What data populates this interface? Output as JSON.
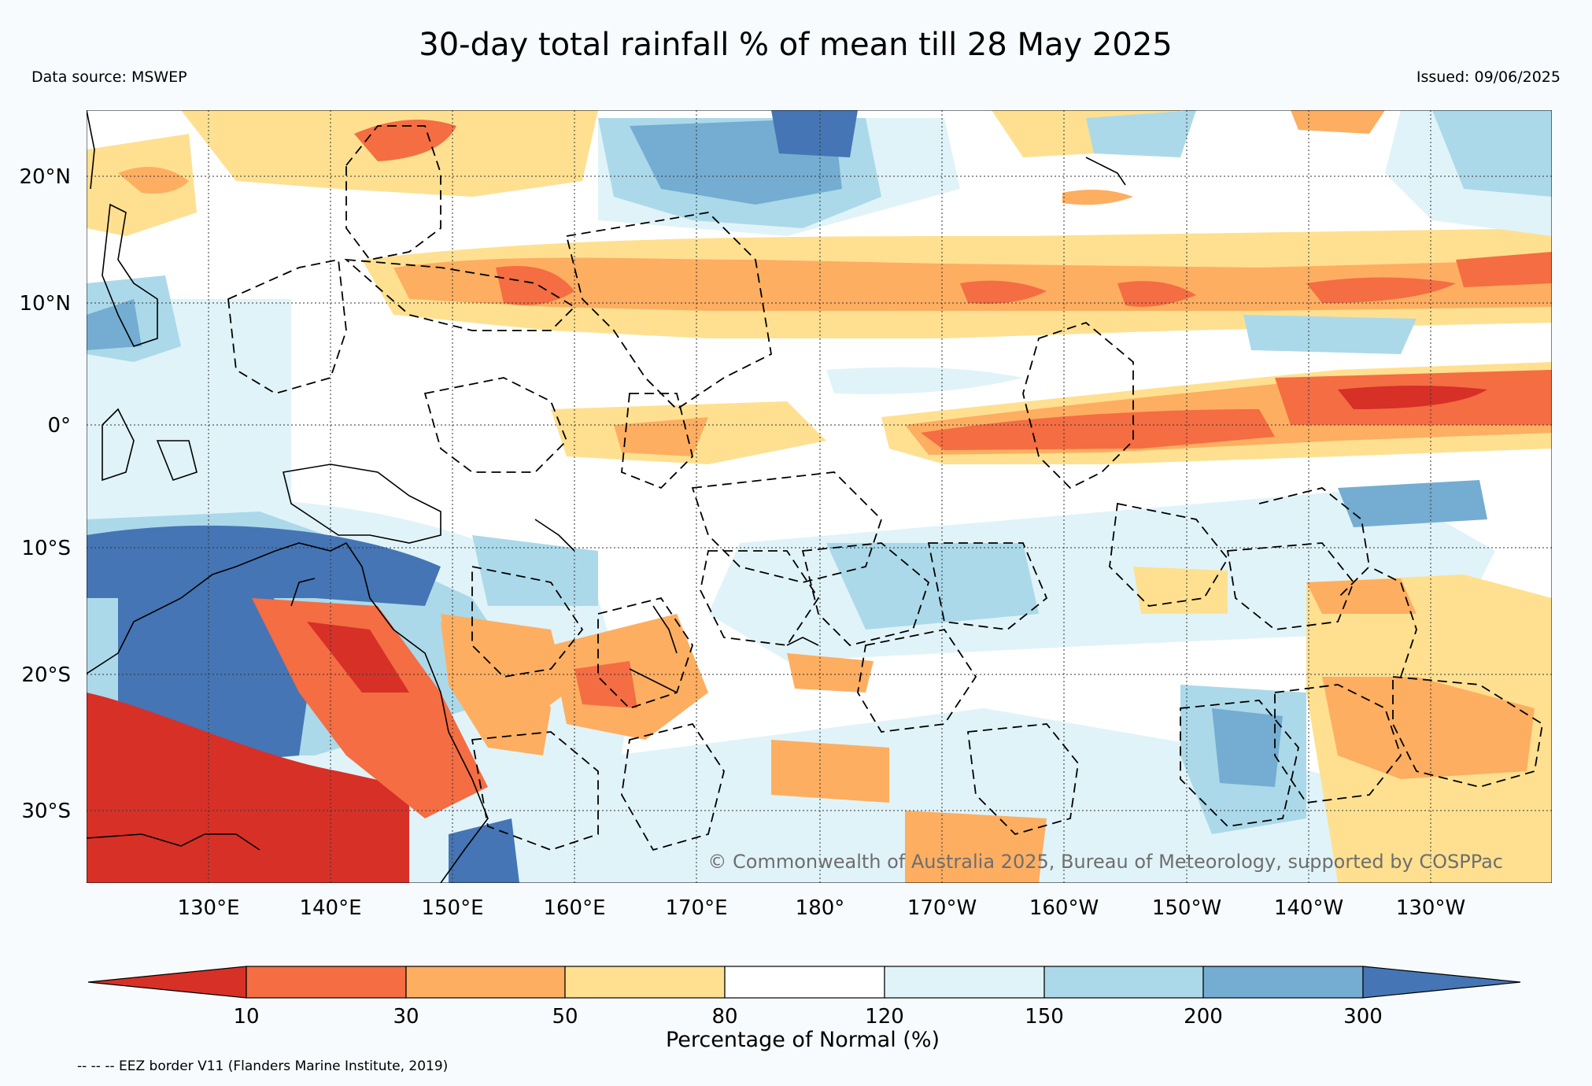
{
  "title": "30-day total rainfall % of mean till 28 May 2025",
  "data_source": "Data source: MSWEP",
  "issued": "Issued: 09/06/2025",
  "copyright": "© Commonwealth of Australia 2025, Bureau of Meteorology, supported by COSPPac",
  "footnote": "-- -- -- EEZ border V11 (Flanders Marine Institute, 2019)",
  "lat_ticks": [
    "20°N",
    "10°N",
    "0°",
    "10°S",
    "20°S",
    "30°S"
  ],
  "lon_ticks": [
    "130°E",
    "140°E",
    "150°E",
    "160°E",
    "170°E",
    "180°",
    "170°W",
    "160°W",
    "150°W",
    "140°W",
    "130°W"
  ],
  "colorbar": {
    "label": "Percentage of Normal (%)",
    "ticks": [
      "10",
      "30",
      "50",
      "80",
      "120",
      "150",
      "200",
      "300"
    ],
    "colors": [
      "#d73027",
      "#f46d43",
      "#fdae61",
      "#fee090",
      "#ffffff",
      "#e0f3f8",
      "#abd9e9",
      "#74add1",
      "#4575b4"
    ]
  },
  "colors": {
    "very_dry": "#d73027",
    "dry": "#f46d43",
    "below": "#fdae61",
    "slightly_below": "#fee090",
    "normal": "#ffffff",
    "slightly_above": "#e0f3f8",
    "above": "#abd9e9",
    "wet": "#74add1",
    "very_wet": "#4575b4"
  }
}
